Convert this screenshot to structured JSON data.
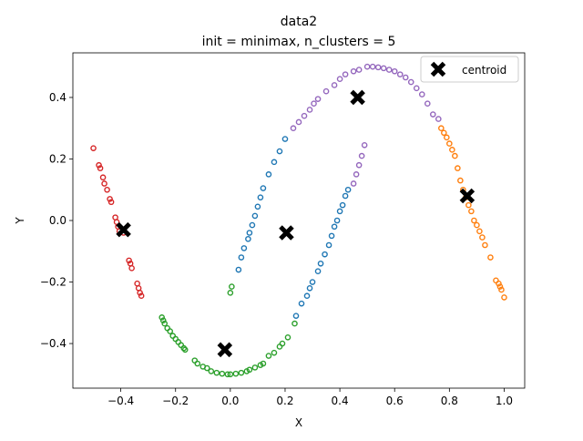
{
  "chart_data": {
    "type": "scatter",
    "title": "data2",
    "subtitle": "init = minimax, n_clusters = 5",
    "xlabel": "X",
    "ylabel": "Y",
    "xlim": [
      -0.575,
      1.075
    ],
    "ylim": [
      -0.545,
      0.545
    ],
    "xticks": [
      -0.4,
      -0.2,
      0.0,
      0.2,
      0.4,
      0.6,
      0.8,
      1.0
    ],
    "xtick_labels": [
      "−0.4",
      "−0.2",
      "0.0",
      "0.2",
      "0.4",
      "0.6",
      "0.8",
      "1.0"
    ],
    "yticks": [
      -0.4,
      -0.2,
      0.0,
      0.2,
      0.4
    ],
    "ytick_labels": [
      "−0.4",
      "−0.2",
      "0.0",
      "0.2",
      "0.4"
    ],
    "grid": false,
    "legend": {
      "placement": "top-right",
      "entries": [
        "centroid"
      ]
    },
    "series": [
      {
        "color": "#d62728",
        "points": [
          [
            -0.5,
            0.235
          ],
          [
            -0.48,
            0.18
          ],
          [
            -0.475,
            0.17
          ],
          [
            -0.465,
            0.14
          ],
          [
            -0.46,
            0.12
          ],
          [
            -0.45,
            0.1
          ],
          [
            -0.44,
            0.07
          ],
          [
            -0.435,
            0.06
          ],
          [
            -0.42,
            0.01
          ],
          [
            -0.415,
            -0.005
          ],
          [
            -0.41,
            -0.02
          ],
          [
            -0.405,
            -0.035
          ],
          [
            -0.39,
            -0.04
          ],
          [
            -0.37,
            -0.13
          ],
          [
            -0.365,
            -0.14
          ],
          [
            -0.36,
            -0.155
          ],
          [
            -0.34,
            -0.205
          ],
          [
            -0.335,
            -0.22
          ],
          [
            -0.33,
            -0.235
          ],
          [
            -0.325,
            -0.245
          ]
        ]
      },
      {
        "color": "#2ca02c",
        "points": [
          [
            -0.25,
            -0.315
          ],
          [
            -0.245,
            -0.325
          ],
          [
            -0.24,
            -0.335
          ],
          [
            -0.23,
            -0.35
          ],
          [
            -0.22,
            -0.36
          ],
          [
            -0.21,
            -0.375
          ],
          [
            -0.2,
            -0.385
          ],
          [
            -0.19,
            -0.395
          ],
          [
            -0.18,
            -0.405
          ],
          [
            -0.17,
            -0.415
          ],
          [
            -0.165,
            -0.42
          ],
          [
            -0.13,
            -0.455
          ],
          [
            -0.12,
            -0.465
          ],
          [
            -0.1,
            -0.475
          ],
          [
            -0.085,
            -0.48
          ],
          [
            -0.07,
            -0.49
          ],
          [
            -0.05,
            -0.495
          ],
          [
            -0.03,
            -0.498
          ],
          [
            -0.01,
            -0.5
          ],
          [
            0.0,
            -0.5
          ],
          [
            0.02,
            -0.498
          ],
          [
            0.04,
            -0.495
          ],
          [
            0.06,
            -0.49
          ],
          [
            0.07,
            -0.485
          ],
          [
            0.09,
            -0.478
          ],
          [
            0.11,
            -0.47
          ],
          [
            0.12,
            -0.465
          ],
          [
            0.14,
            -0.44
          ],
          [
            0.16,
            -0.43
          ],
          [
            0.18,
            -0.41
          ],
          [
            0.19,
            -0.4
          ],
          [
            0.21,
            -0.38
          ],
          [
            0.235,
            -0.335
          ],
          [
            0.0,
            -0.235
          ],
          [
            0.005,
            -0.215
          ]
        ]
      },
      {
        "color": "#1f77b4",
        "points": [
          [
            0.03,
            -0.16
          ],
          [
            0.04,
            -0.12
          ],
          [
            0.05,
            -0.09
          ],
          [
            0.065,
            -0.06
          ],
          [
            0.07,
            -0.04
          ],
          [
            0.08,
            -0.015
          ],
          [
            0.09,
            0.015
          ],
          [
            0.1,
            0.045
          ],
          [
            0.11,
            0.075
          ],
          [
            0.12,
            0.105
          ],
          [
            0.14,
            0.15
          ],
          [
            0.16,
            0.19
          ],
          [
            0.18,
            0.225
          ],
          [
            0.2,
            0.265
          ],
          [
            0.24,
            -0.31
          ],
          [
            0.26,
            -0.27
          ],
          [
            0.28,
            -0.245
          ],
          [
            0.29,
            -0.22
          ],
          [
            0.3,
            -0.2
          ],
          [
            0.32,
            -0.165
          ],
          [
            0.33,
            -0.14
          ],
          [
            0.345,
            -0.11
          ],
          [
            0.36,
            -0.08
          ],
          [
            0.37,
            -0.05
          ],
          [
            0.38,
            -0.02
          ],
          [
            0.39,
            0.0
          ],
          [
            0.4,
            0.03
          ],
          [
            0.41,
            0.05
          ],
          [
            0.42,
            0.08
          ],
          [
            0.43,
            0.1
          ]
        ]
      },
      {
        "color": "#9467bd",
        "points": [
          [
            0.23,
            0.3
          ],
          [
            0.25,
            0.32
          ],
          [
            0.27,
            0.34
          ],
          [
            0.29,
            0.36
          ],
          [
            0.305,
            0.38
          ],
          [
            0.32,
            0.395
          ],
          [
            0.35,
            0.42
          ],
          [
            0.38,
            0.44
          ],
          [
            0.4,
            0.46
          ],
          [
            0.42,
            0.475
          ],
          [
            0.45,
            0.485
          ],
          [
            0.47,
            0.49
          ],
          [
            0.5,
            0.5
          ],
          [
            0.52,
            0.5
          ],
          [
            0.54,
            0.498
          ],
          [
            0.56,
            0.495
          ],
          [
            0.58,
            0.49
          ],
          [
            0.6,
            0.485
          ],
          [
            0.62,
            0.475
          ],
          [
            0.64,
            0.465
          ],
          [
            0.66,
            0.45
          ],
          [
            0.68,
            0.43
          ],
          [
            0.7,
            0.41
          ],
          [
            0.72,
            0.38
          ],
          [
            0.74,
            0.345
          ],
          [
            0.76,
            0.33
          ],
          [
            0.49,
            0.245
          ],
          [
            0.48,
            0.21
          ],
          [
            0.47,
            0.18
          ],
          [
            0.46,
            0.15
          ],
          [
            0.45,
            0.12
          ]
        ]
      },
      {
        "color": "#ff7f0e",
        "points": [
          [
            0.77,
            0.3
          ],
          [
            0.78,
            0.285
          ],
          [
            0.79,
            0.27
          ],
          [
            0.8,
            0.25
          ],
          [
            0.81,
            0.23
          ],
          [
            0.82,
            0.21
          ],
          [
            0.83,
            0.17
          ],
          [
            0.84,
            0.13
          ],
          [
            0.85,
            0.1
          ],
          [
            0.86,
            0.075
          ],
          [
            0.87,
            0.05
          ],
          [
            0.88,
            0.03
          ],
          [
            0.89,
            0.0
          ],
          [
            0.9,
            -0.015
          ],
          [
            0.91,
            -0.035
          ],
          [
            0.92,
            -0.055
          ],
          [
            0.93,
            -0.08
          ],
          [
            0.95,
            -0.12
          ],
          [
            0.97,
            -0.195
          ],
          [
            0.98,
            -0.205
          ],
          [
            0.985,
            -0.215
          ],
          [
            0.99,
            -0.225
          ],
          [
            1.0,
            -0.25
          ]
        ]
      }
    ],
    "centroids": [
      [
        -0.39,
        -0.03
      ],
      [
        -0.02,
        -0.42
      ],
      [
        0.205,
        -0.04
      ],
      [
        0.465,
        0.4
      ],
      [
        0.865,
        0.08
      ]
    ]
  }
}
